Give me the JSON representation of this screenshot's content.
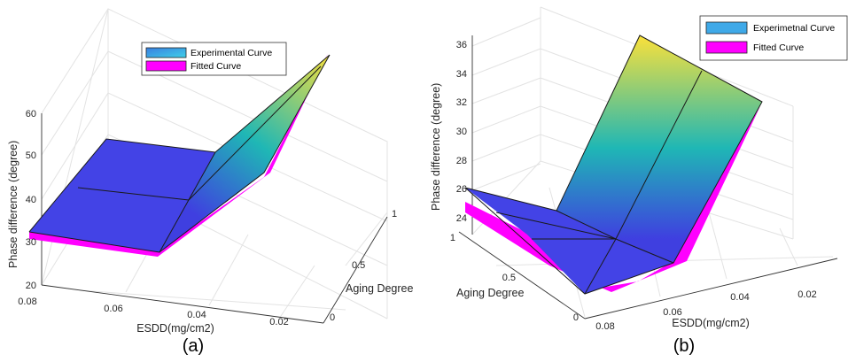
{
  "chart_data": [
    {
      "type": "surface3d",
      "panel_label": "(a)",
      "xlabel": "ESDD(mg/cm2)",
      "ylabel": "Aging Degree",
      "zlabel": "Phase difference (degree)",
      "x_ticks": [
        "0.08",
        "0.06",
        "0.04",
        "0.02"
      ],
      "y_ticks": [
        "0",
        "0.5",
        "1"
      ],
      "z_ticks": [
        "20",
        "30",
        "40",
        "50",
        "60"
      ],
      "zlim": [
        20,
        60
      ],
      "legend": [
        "Experimental Curve",
        "Fitted Curve"
      ],
      "legend_position": "top-center",
      "colormap": "parula",
      "series": [
        {
          "name": "Experimental Curve",
          "x": [
            0.08,
            0.04,
            0.02
          ],
          "y": [
            0,
            0.5,
            1
          ],
          "z": [
            [
              31,
              31,
              31
            ],
            [
              55,
              58,
              61
            ],
            [
              31,
              31,
              31
            ]
          ]
        },
        {
          "name": "Fitted Curve",
          "color": "#ff00ff"
        }
      ]
    },
    {
      "type": "surface3d",
      "panel_label": "(b)",
      "xlabel": "ESDD(mg/cm2)",
      "ylabel": "Aging Degree",
      "zlabel": "Phase difference (degree)",
      "x_ticks": [
        "0.08",
        "0.06",
        "0.04",
        "0.02"
      ],
      "y_ticks": [
        "0",
        "0.5",
        "1"
      ],
      "z_ticks": [
        "24",
        "26",
        "28",
        "30",
        "32",
        "34",
        "36"
      ],
      "zlim": [
        23.5,
        37
      ],
      "legend": [
        "Experimetnal Curve",
        "Fitted Curve"
      ],
      "legend_position": "top-right",
      "colormap": "parula",
      "series": [
        {
          "name": "Experimetnal Curve",
          "x": [
            0.08,
            0.05,
            0.02
          ],
          "y": [
            0,
            0.5,
            1
          ],
          "z": [
            [
              24.5,
              24.5,
              26
            ],
            [
              24.5,
              24.5,
              24.5
            ],
            [
              36.5,
              36.5,
              36.5
            ]
          ]
        },
        {
          "name": "Fitted Curve",
          "color": "#ff00ff"
        }
      ]
    }
  ],
  "colors": {
    "parula_low": "#3f3fe0",
    "parula_mid": "#1fb7b5",
    "parula_high": "#f7e03c",
    "fitted": "#ff00ff",
    "legend_experimental": "#3fa9e8"
  }
}
